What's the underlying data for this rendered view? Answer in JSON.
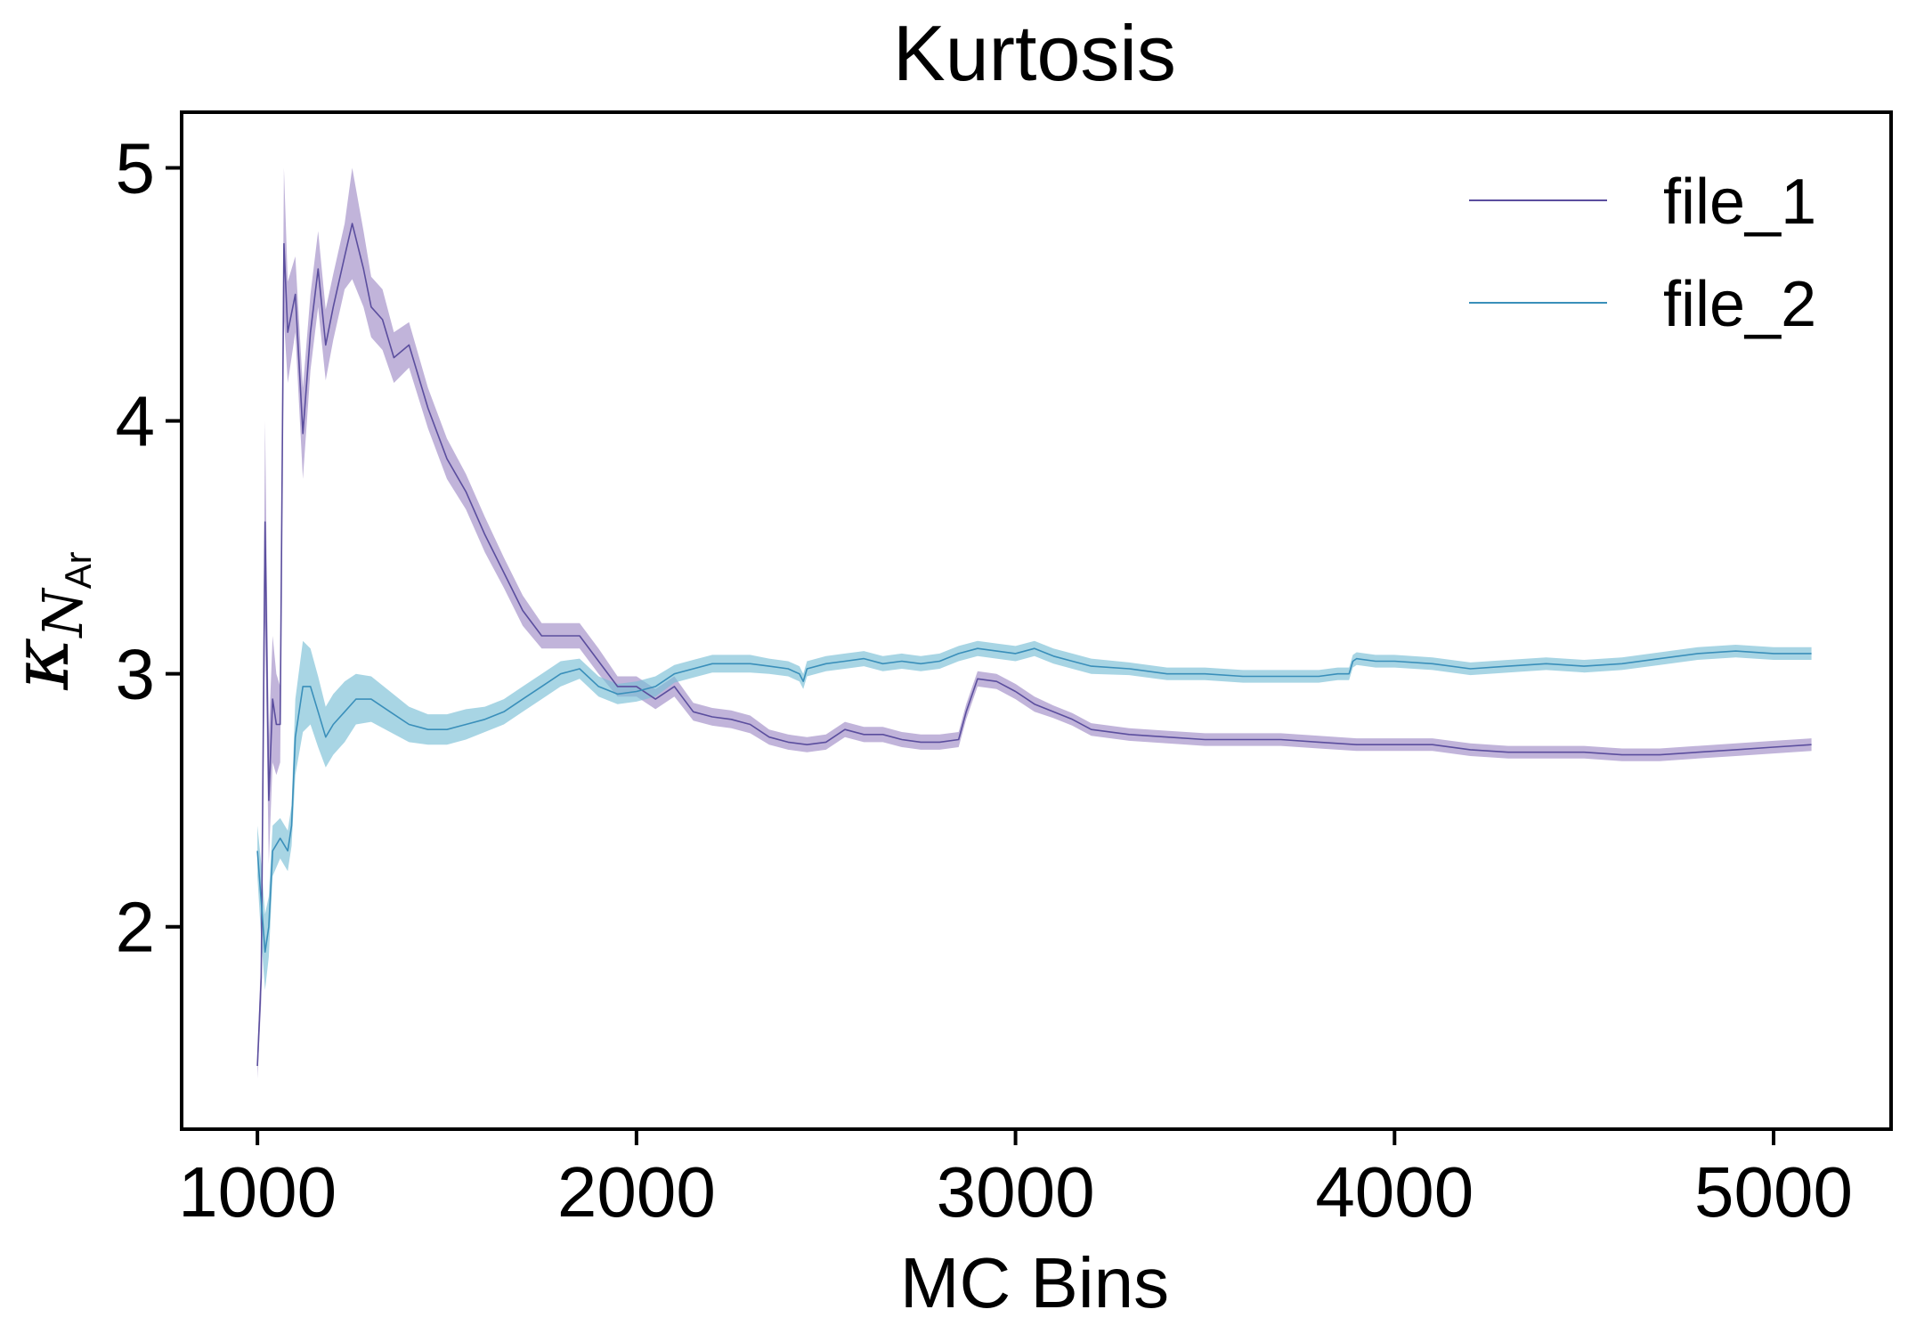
{
  "chart_data": {
    "type": "line",
    "title": "Kurtosis",
    "xlabel": "MC Bins",
    "ylabel": {
      "symbol": "κ",
      "sub": "N",
      "subsub": "Ar"
    },
    "xlim": [
      800,
      5310
    ],
    "ylim": [
      1.2,
      5.22
    ],
    "xticks": [
      1000,
      2000,
      3000,
      4000,
      5000
    ],
    "yticks": [
      2,
      3,
      4,
      5
    ],
    "grid": false,
    "legend": "top-right",
    "series": [
      {
        "name": "file_1",
        "color": "#5b4e9e",
        "band_color": "#9f8cc6",
        "x": [
          1000,
          1010,
          1020,
          1030,
          1040,
          1050,
          1060,
          1070,
          1080,
          1100,
          1120,
          1140,
          1160,
          1180,
          1200,
          1230,
          1250,
          1280,
          1300,
          1330,
          1360,
          1400,
          1450,
          1500,
          1550,
          1600,
          1650,
          1700,
          1750,
          1800,
          1850,
          1900,
          1950,
          2000,
          2050,
          2100,
          2150,
          2200,
          2250,
          2300,
          2350,
          2400,
          2450,
          2500,
          2550,
          2600,
          2650,
          2700,
          2750,
          2800,
          2850,
          2870,
          2900,
          2950,
          3000,
          3050,
          3100,
          3150,
          3200,
          3300,
          3400,
          3500,
          3600,
          3700,
          3800,
          3900,
          4000,
          4100,
          4200,
          4300,
          4400,
          4500,
          4600,
          4700,
          4800,
          4900,
          5000,
          5100
        ],
        "y": [
          1.45,
          1.8,
          3.6,
          2.5,
          2.9,
          2.8,
          2.8,
          4.7,
          4.35,
          4.5,
          3.95,
          4.35,
          4.6,
          4.3,
          4.45,
          4.65,
          4.78,
          4.6,
          4.45,
          4.4,
          4.25,
          4.3,
          4.05,
          3.85,
          3.72,
          3.55,
          3.4,
          3.25,
          3.15,
          3.15,
          3.15,
          3.05,
          2.95,
          2.95,
          2.9,
          2.95,
          2.85,
          2.83,
          2.82,
          2.8,
          2.75,
          2.73,
          2.72,
          2.73,
          2.78,
          2.76,
          2.76,
          2.74,
          2.73,
          2.73,
          2.74,
          2.85,
          2.98,
          2.97,
          2.93,
          2.88,
          2.85,
          2.82,
          2.78,
          2.76,
          2.75,
          2.74,
          2.74,
          2.74,
          2.73,
          2.72,
          2.72,
          2.72,
          2.7,
          2.69,
          2.69,
          2.69,
          2.68,
          2.68,
          2.69,
          2.7,
          2.71,
          2.72
        ],
        "err": [
          0.05,
          0.1,
          0.4,
          0.25,
          0.25,
          0.2,
          0.15,
          0.3,
          0.2,
          0.15,
          0.18,
          0.15,
          0.15,
          0.14,
          0.13,
          0.13,
          0.22,
          0.15,
          0.12,
          0.12,
          0.1,
          0.09,
          0.08,
          0.08,
          0.07,
          0.07,
          0.06,
          0.06,
          0.05,
          0.05,
          0.05,
          0.05,
          0.04,
          0.04,
          0.04,
          0.04,
          0.035,
          0.035,
          0.035,
          0.035,
          0.03,
          0.03,
          0.03,
          0.03,
          0.03,
          0.03,
          0.03,
          0.03,
          0.03,
          0.03,
          0.03,
          0.03,
          0.03,
          0.03,
          0.03,
          0.03,
          0.025,
          0.025,
          0.025,
          0.025,
          0.025,
          0.025,
          0.025,
          0.025,
          0.025,
          0.025,
          0.025,
          0.025,
          0.025,
          0.025,
          0.025,
          0.025,
          0.025,
          0.025,
          0.025,
          0.025,
          0.025,
          0.025
        ]
      },
      {
        "name": "file_2",
        "color": "#3a8fba",
        "band_color": "#79bfd6",
        "x": [
          1000,
          1010,
          1020,
          1030,
          1040,
          1060,
          1080,
          1090,
          1100,
          1120,
          1140,
          1160,
          1180,
          1200,
          1230,
          1260,
          1300,
          1350,
          1400,
          1450,
          1500,
          1550,
          1600,
          1650,
          1700,
          1750,
          1800,
          1850,
          1900,
          1950,
          2000,
          2050,
          2100,
          2150,
          2200,
          2250,
          2300,
          2350,
          2400,
          2430,
          2440,
          2450,
          2500,
          2550,
          2600,
          2650,
          2700,
          2750,
          2800,
          2850,
          2900,
          2950,
          3000,
          3050,
          3100,
          3150,
          3200,
          3300,
          3400,
          3500,
          3600,
          3700,
          3800,
          3850,
          3880,
          3890,
          3900,
          3950,
          4000,
          4100,
          4200,
          4300,
          4400,
          4500,
          4600,
          4700,
          4800,
          4900,
          5000,
          5100
        ],
        "y": [
          2.3,
          2.1,
          1.9,
          2.0,
          2.3,
          2.35,
          2.3,
          2.4,
          2.75,
          2.95,
          2.95,
          2.85,
          2.75,
          2.8,
          2.85,
          2.9,
          2.9,
          2.85,
          2.8,
          2.78,
          2.78,
          2.8,
          2.82,
          2.85,
          2.9,
          2.95,
          3.0,
          3.02,
          2.95,
          2.92,
          2.93,
          2.95,
          3.0,
          3.02,
          3.04,
          3.04,
          3.04,
          3.03,
          3.02,
          3.0,
          2.97,
          3.02,
          3.04,
          3.05,
          3.06,
          3.04,
          3.05,
          3.04,
          3.05,
          3.08,
          3.1,
          3.09,
          3.08,
          3.1,
          3.07,
          3.05,
          3.03,
          3.02,
          3.0,
          3.0,
          2.99,
          2.99,
          2.99,
          3.0,
          3.0,
          3.05,
          3.06,
          3.05,
          3.05,
          3.04,
          3.02,
          3.03,
          3.04,
          3.03,
          3.04,
          3.06,
          3.08,
          3.09,
          3.08,
          3.08
        ],
        "err": [
          0.1,
          0.15,
          0.15,
          0.12,
          0.1,
          0.08,
          0.08,
          0.08,
          0.15,
          0.18,
          0.15,
          0.14,
          0.12,
          0.12,
          0.12,
          0.1,
          0.09,
          0.08,
          0.07,
          0.06,
          0.06,
          0.06,
          0.05,
          0.05,
          0.05,
          0.05,
          0.05,
          0.04,
          0.04,
          0.04,
          0.04,
          0.04,
          0.035,
          0.035,
          0.035,
          0.035,
          0.035,
          0.03,
          0.03,
          0.03,
          0.03,
          0.03,
          0.03,
          0.03,
          0.03,
          0.03,
          0.03,
          0.03,
          0.03,
          0.03,
          0.03,
          0.03,
          0.03,
          0.03,
          0.03,
          0.03,
          0.03,
          0.025,
          0.025,
          0.025,
          0.025,
          0.025,
          0.025,
          0.025,
          0.025,
          0.025,
          0.025,
          0.025,
          0.025,
          0.025,
          0.025,
          0.025,
          0.025,
          0.025,
          0.025,
          0.025,
          0.025,
          0.025,
          0.025,
          0.025
        ]
      }
    ]
  }
}
